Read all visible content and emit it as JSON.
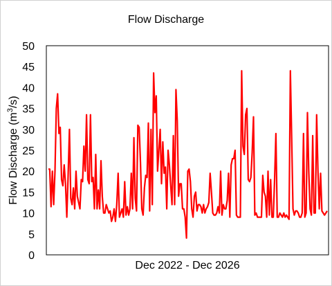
{
  "chart_data": {
    "type": "line",
    "title": "Flow Discharge",
    "xlabel": "Dec 2022 - Dec 2026",
    "ylabel": "Flow Discharge (m³/s)",
    "ylim": [
      0,
      50
    ],
    "yticks": [
      0,
      5,
      10,
      15,
      20,
      25,
      30,
      35,
      40,
      45,
      50
    ],
    "grid": false,
    "series_color": "#ff0000",
    "series": [
      {
        "values": [
          20.5,
          20.5,
          11.5,
          20,
          12,
          20,
          35,
          38.5,
          29,
          30.5,
          18,
          16.5,
          21.5,
          17,
          9,
          19,
          30,
          13.5,
          12,
          16,
          11,
          20,
          14,
          12.5,
          11,
          18,
          17.5,
          26,
          20,
          33.5,
          18,
          17,
          33.5,
          17.5,
          18.5,
          11,
          24,
          11,
          15.5,
          11,
          22.5,
          14,
          10,
          10,
          12,
          11,
          10,
          10.5,
          8,
          9,
          11,
          8,
          12,
          19.5,
          9,
          10,
          11,
          9,
          17.5,
          9.5,
          11.5,
          9.5,
          11,
          19.5,
          11,
          28,
          13.5,
          10.5,
          31,
          30.5,
          22,
          11,
          9.5,
          16,
          19,
          18.5,
          31.5,
          10.5,
          30,
          12,
          43.5,
          34,
          38,
          20,
          25,
          30,
          17,
          27,
          19.5,
          21,
          11,
          25,
          21.5,
          16.5,
          12,
          28.5,
          12,
          39.5,
          32,
          14,
          17,
          17,
          11,
          11,
          9,
          4,
          20,
          20.5,
          17.5,
          11,
          9,
          14,
          15,
          10.5,
          12,
          12,
          11.5,
          10,
          12,
          10,
          11,
          11.5,
          12.5,
          19.5,
          15,
          10,
          9.5,
          9.5,
          10,
          11.5,
          10,
          20,
          9.5,
          12,
          11,
          11,
          13,
          19.5,
          9,
          21.5,
          23,
          23,
          25,
          9.5,
          9,
          9,
          9,
          44,
          26,
          24,
          33.5,
          35,
          18,
          17.5,
          18.5,
          24.5,
          33,
          9.5,
          10,
          9,
          9,
          9,
          9,
          19,
          15,
          14,
          9,
          20,
          9.5,
          18,
          9,
          9,
          18,
          29,
          9,
          9,
          10,
          9.5,
          9,
          10,
          9,
          9.5,
          9,
          8.5,
          44,
          28,
          11,
          9.5,
          10.5,
          10.5,
          10,
          9,
          9,
          10,
          29,
          9,
          10,
          34,
          20,
          11,
          9.5,
          28.5,
          10,
          10,
          33.5,
          20,
          11,
          19.5,
          10.5,
          10,
          9.5,
          10,
          10.5
        ]
      }
    ]
  }
}
